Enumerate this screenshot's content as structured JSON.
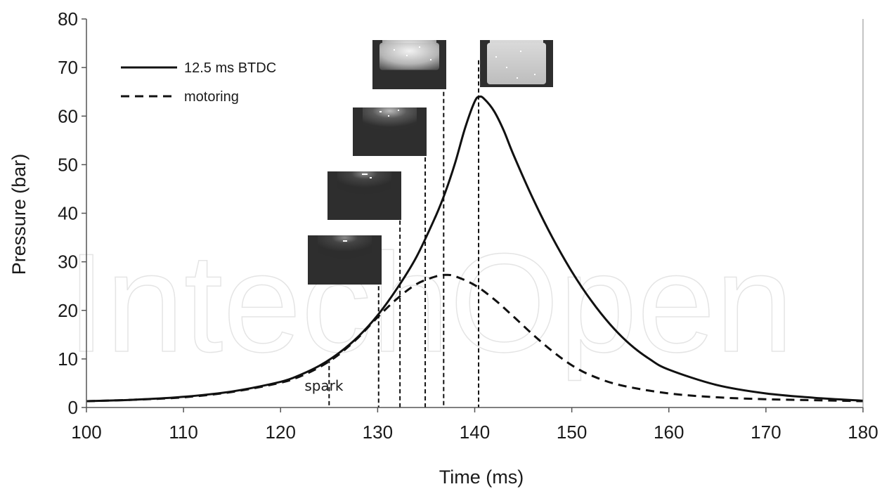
{
  "chart_data": {
    "type": "line",
    "xlabel": "Time (ms)",
    "ylabel": "Pressure (bar)",
    "xlim": [
      100,
      180
    ],
    "ylim": [
      0,
      80
    ],
    "xticks": [
      100,
      110,
      120,
      130,
      140,
      150,
      160,
      170,
      180
    ],
    "yticks": [
      0,
      10,
      20,
      30,
      40,
      50,
      60,
      70,
      80
    ],
    "grid": false,
    "legend_position": "top-left",
    "series": [
      {
        "name": "12.5 ms BTDC",
        "style": "solid",
        "points": [
          [
            100,
            1.3
          ],
          [
            105,
            1.6
          ],
          [
            110,
            2.2
          ],
          [
            115,
            3.3
          ],
          [
            120,
            5.3
          ],
          [
            122,
            6.7
          ],
          [
            124,
            8.6
          ],
          [
            126,
            11.2
          ],
          [
            128,
            14.6
          ],
          [
            130,
            19.0
          ],
          [
            132,
            24.5
          ],
          [
            134,
            31.0
          ],
          [
            136,
            39.5
          ],
          [
            137,
            44.5
          ],
          [
            138,
            50.5
          ],
          [
            139,
            57.5
          ],
          [
            140,
            63.0
          ],
          [
            140.5,
            64.0
          ],
          [
            141,
            63.5
          ],
          [
            142,
            61.0
          ],
          [
            143,
            57.0
          ],
          [
            144,
            52.0
          ],
          [
            146,
            43.0
          ],
          [
            148,
            35.0
          ],
          [
            150,
            28.0
          ],
          [
            152,
            22.0
          ],
          [
            154,
            17.0
          ],
          [
            156,
            13.0
          ],
          [
            158,
            10.0
          ],
          [
            160,
            7.8
          ],
          [
            165,
            4.6
          ],
          [
            170,
            2.9
          ],
          [
            175,
            2.0
          ],
          [
            180,
            1.4
          ]
        ]
      },
      {
        "name": "motoring",
        "style": "dashed",
        "points": [
          [
            100,
            1.3
          ],
          [
            105,
            1.6
          ],
          [
            110,
            2.1
          ],
          [
            115,
            3.2
          ],
          [
            120,
            5.1
          ],
          [
            122,
            6.4
          ],
          [
            124,
            8.3
          ],
          [
            126,
            10.9
          ],
          [
            128,
            14.4
          ],
          [
            130,
            18.6
          ],
          [
            132,
            22.4
          ],
          [
            134,
            25.4
          ],
          [
            136,
            27.0
          ],
          [
            137,
            27.3
          ],
          [
            138,
            27.0
          ],
          [
            140,
            25.2
          ],
          [
            142,
            22.3
          ],
          [
            144,
            18.7
          ],
          [
            146,
            15.0
          ],
          [
            148,
            11.6
          ],
          [
            150,
            8.7
          ],
          [
            152,
            6.6
          ],
          [
            155,
            4.6
          ],
          [
            160,
            2.9
          ],
          [
            165,
            2.1
          ],
          [
            170,
            1.7
          ],
          [
            175,
            1.5
          ],
          [
            180,
            1.3
          ]
        ]
      }
    ],
    "markers": [
      {
        "x": 125.0,
        "y_top": 10.0,
        "label": "spark"
      },
      {
        "x": 130.1,
        "y_top": 25.0
      },
      {
        "x": 132.3,
        "y_top": 38.5
      },
      {
        "x": 134.9,
        "y_top": 51.5
      },
      {
        "x": 136.8,
        "y_top": 65.0
      },
      {
        "x": 140.4,
        "y_top": 71.5
      }
    ],
    "frames": [
      {
        "name": "frame-1",
        "brightness": "dark-small-flame"
      },
      {
        "name": "frame-2",
        "brightness": "dark-glow"
      },
      {
        "name": "frame-3",
        "brightness": "medium-glow"
      },
      {
        "name": "frame-4",
        "brightness": "bright-partial"
      },
      {
        "name": "frame-5",
        "brightness": "bright-full"
      }
    ]
  },
  "watermark": "IntechOpen",
  "colors": {
    "line": "#111111",
    "frame_dark": "#3a3a3a",
    "frame_glow": "#bdbdbd"
  }
}
